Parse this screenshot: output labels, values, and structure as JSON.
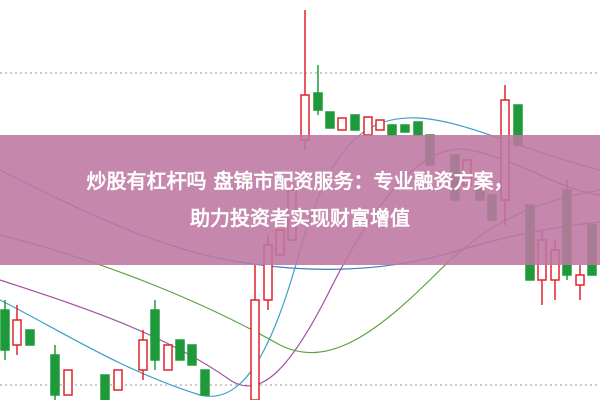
{
  "banner": {
    "lines": [
      "炒股有杠杆吗 盘锦市配资服务：专业融资方案，",
      "助力投资者实现财富增值"
    ]
  }
}
